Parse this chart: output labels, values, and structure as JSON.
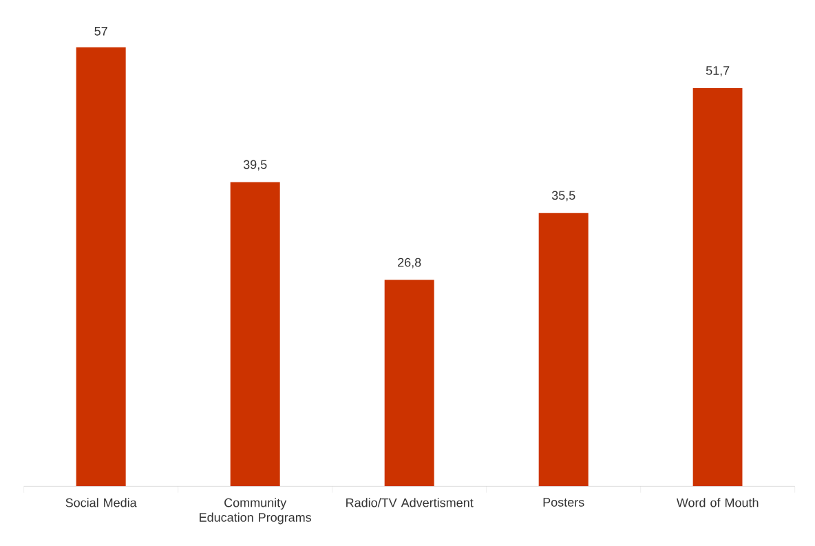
{
  "chart_data": {
    "type": "bar",
    "categories": [
      "Social Media",
      "Community Education Programs",
      "Radio/TV Advertisment",
      "Posters",
      "Word of Mouth"
    ],
    "values": [
      57,
      39.5,
      26.8,
      35.5,
      51.7
    ],
    "value_labels": [
      "57",
      "39,5",
      "26,8",
      "35,5",
      "51,7"
    ],
    "color": "#cc3300"
  }
}
